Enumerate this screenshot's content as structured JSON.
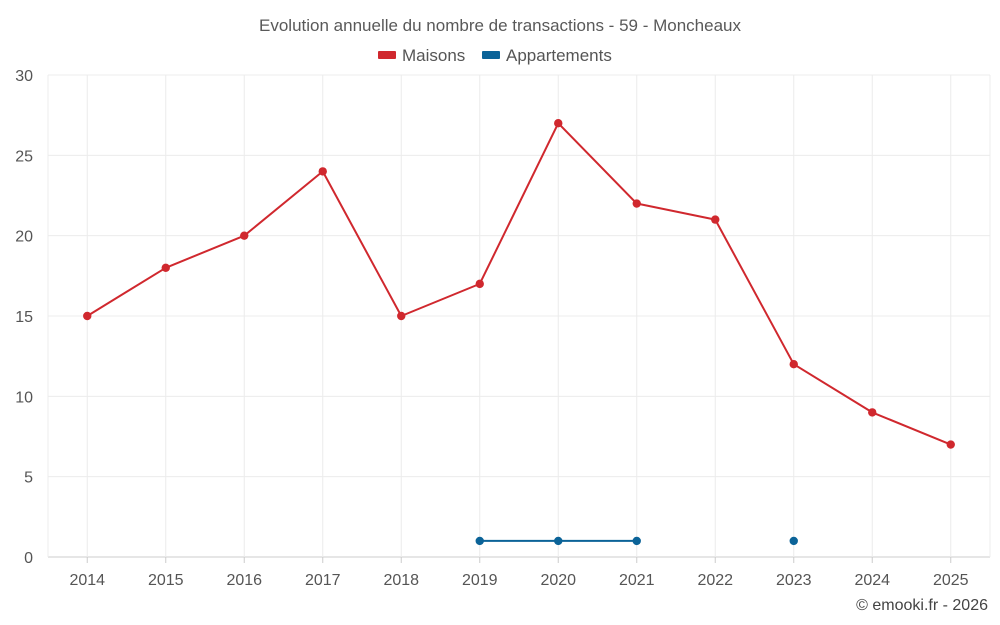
{
  "chart_data": {
    "type": "line",
    "title": "Evolution annuelle du nombre de transactions - 59 - Moncheaux",
    "categories": [
      "2014",
      "2015",
      "2016",
      "2017",
      "2018",
      "2019",
      "2020",
      "2021",
      "2022",
      "2023",
      "2024",
      "2025"
    ],
    "series": [
      {
        "name": "Maisons",
        "color": "#d0282e",
        "values": [
          15,
          18,
          20,
          24,
          15,
          17,
          27,
          22,
          21,
          12,
          9,
          7
        ]
      },
      {
        "name": "Appartements",
        "color": "#0b6398",
        "values": [
          null,
          null,
          null,
          null,
          null,
          1,
          1,
          1,
          null,
          1,
          null,
          null
        ]
      }
    ],
    "ylim": [
      0,
      30
    ],
    "yticks": [
      0,
      5,
      10,
      15,
      20,
      25,
      30
    ],
    "xlabel": "",
    "ylabel": "",
    "grid": true,
    "legend": "top-center"
  },
  "credit": "© emooki.fr - 2026"
}
